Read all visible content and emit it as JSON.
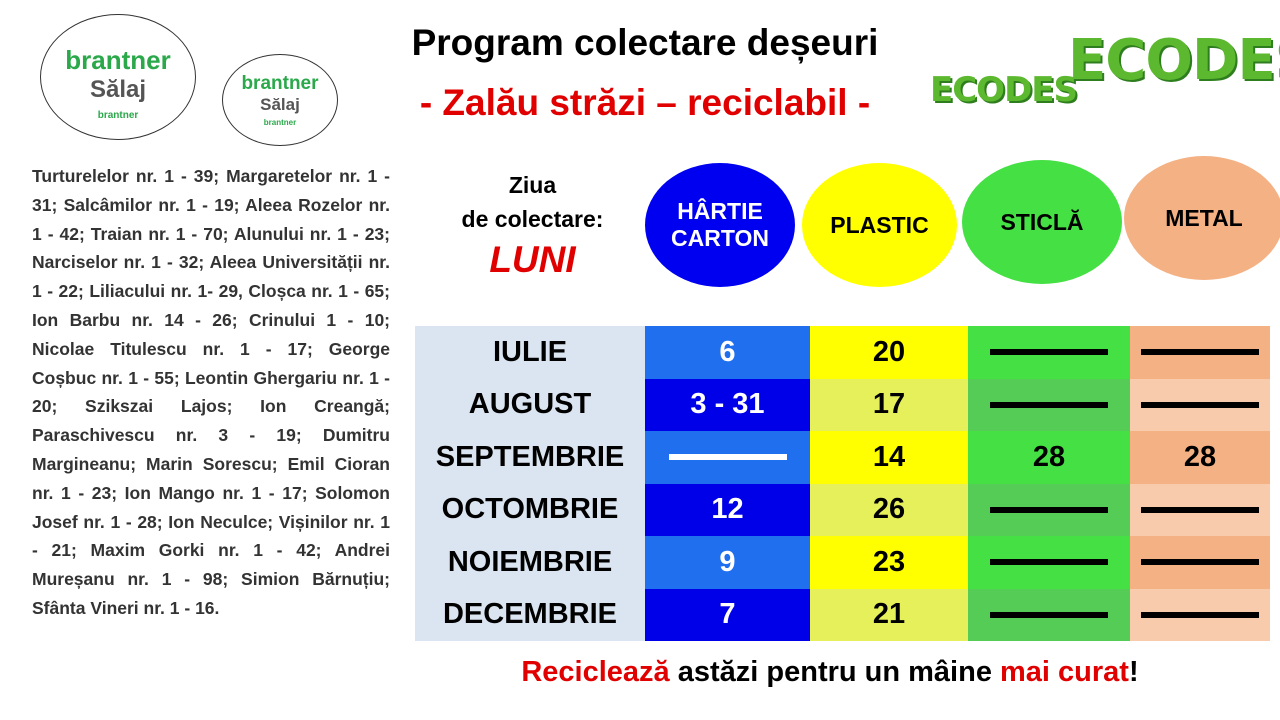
{
  "logos": {
    "brantner_large": {
      "name": "brantner",
      "region": "Sălaj",
      "small": "brantner"
    },
    "brantner_small": {
      "name": "brantner",
      "region": "Sălaj",
      "small": "brantner"
    },
    "ecodes_small": "ECODES",
    "ecodes_large": "ECODES"
  },
  "header": {
    "title": "Program colectare deșeuri",
    "subtitle": "- Zalău străzi – reciclabil -"
  },
  "streets": "Turturelelor nr. 1 - 39; Margaretelor nr. 1 - 31; Salcâmilor nr. 1 - 19; Aleea Rozelor nr. 1 - 42; Traian nr. 1 - 70; Alunului nr. 1 - 23; Narciselor nr. 1 - 32; Aleea Universității nr. 1 - 22; Liliacului nr. 1- 29, Cloșca nr. 1 - 65; Ion Barbu nr. 14 - 26; Crinului 1 - 10; Nicolae Titulescu nr. 1 - 17; George Coșbuc nr. 1 - 55; Leontin Ghergariu nr. 1 - 20; Szikszai Lajos; Ion Creangă; Paraschivescu nr. 3 - 19; Dumitru Margineanu; Marin Sorescu; Emil Cioran nr. 1 - 23; Ion Mango nr. 1 - 17; Solomon Josef nr. 1 - 28; Ion Neculce; Vișinilor nr. 1 - 21; Maxim Gorki nr. 1 - 42; Andrei Mureșanu nr. 1 - 98; Simion Bărnuțiu; Sfânta Vineri nr. 1 - 16.",
  "collection_day": {
    "label_line1": "Ziua",
    "label_line2": "de colectare:",
    "day": "LUNI"
  },
  "table": {
    "columns": [
      "HÂRTIE CARTON",
      "PLASTIC",
      "STICLĂ",
      "METAL"
    ],
    "rows": [
      {
        "month": "IULIE",
        "values": [
          "6",
          "20",
          null,
          null
        ]
      },
      {
        "month": "AUGUST",
        "values": [
          "3 - 31",
          "17",
          null,
          null
        ]
      },
      {
        "month": "SEPTEMBRIE",
        "values": [
          null,
          "14",
          "28",
          "28"
        ]
      },
      {
        "month": "OCTOMBRIE",
        "values": [
          "12",
          "26",
          null,
          null
        ]
      },
      {
        "month": "NOIEMBRIE",
        "values": [
          "9",
          "23",
          null,
          null
        ]
      },
      {
        "month": "DECEMBRIE",
        "values": [
          "7",
          "21",
          null,
          null
        ]
      }
    ]
  },
  "footer": [
    "Reciclează",
    " astăzi pentru un mâine ",
    "mai curat",
    "!"
  ]
}
